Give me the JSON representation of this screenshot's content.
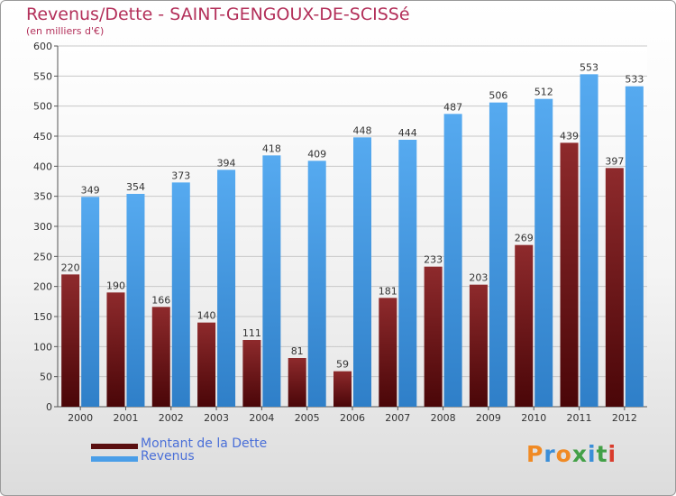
{
  "chart_data": {
    "type": "bar",
    "title": "Revenus/Dette - SAINT-GENGOUX-DE-SCISSé",
    "subtitle": "(en milliers d'€)",
    "categories": [
      "2000",
      "2001",
      "2002",
      "2003",
      "2004",
      "2005",
      "2006",
      "2007",
      "2008",
      "2009",
      "2010",
      "2011",
      "2012"
    ],
    "series": [
      {
        "name": "Montant de la Dette",
        "values": [
          220,
          190,
          166,
          140,
          111,
          81,
          59,
          181,
          233,
          203,
          269,
          439,
          397
        ],
        "color": "#7a1a1c"
      },
      {
        "name": "Revenus",
        "values": [
          349,
          354,
          373,
          394,
          418,
          409,
          448,
          444,
          487,
          506,
          512,
          553,
          533
        ],
        "color": "#4a9ee8"
      }
    ],
    "ylim": [
      0,
      600
    ],
    "yticks": [
      0,
      50,
      100,
      150,
      200,
      250,
      300,
      350,
      400,
      450,
      500,
      550,
      600
    ],
    "grid": true,
    "legend_position": "bottom-left"
  },
  "brand": {
    "letters": [
      "P",
      "r",
      "o",
      "x",
      "i",
      "t",
      "i"
    ]
  }
}
